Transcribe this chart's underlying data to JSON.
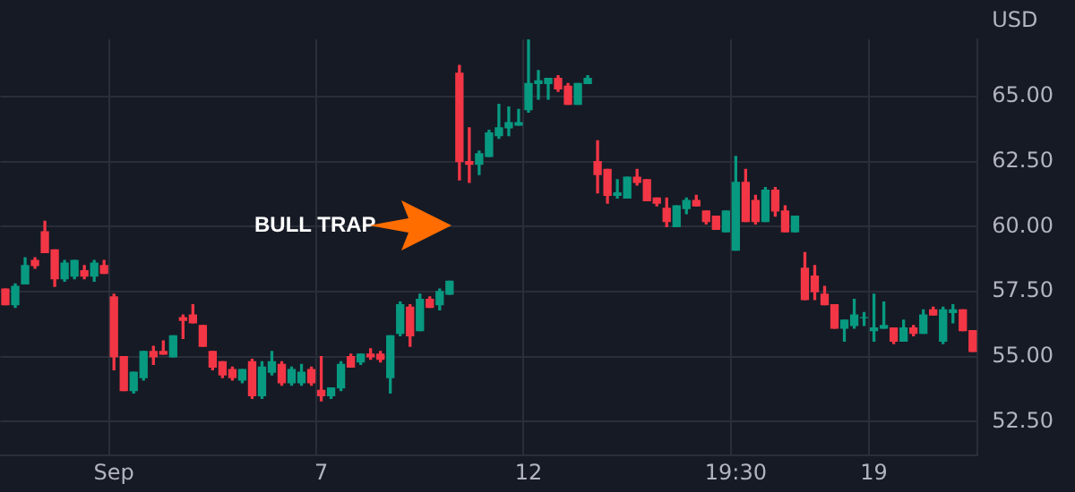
{
  "chart_data": {
    "type": "candlestick",
    "ylabel": "USD",
    "annotations": [
      "BULL TRAP"
    ],
    "grid": true,
    "categories": [
      null,
      null,
      null,
      null,
      null,
      null,
      null,
      null,
      null,
      null,
      null,
      "Sep",
      null,
      null,
      null,
      null,
      null,
      null,
      null,
      null,
      null,
      null,
      null,
      null,
      null,
      null,
      null,
      null,
      null,
      null,
      null,
      null,
      "7",
      null,
      null,
      null,
      null,
      null,
      null,
      null,
      null,
      null,
      null,
      null,
      null,
      null,
      null,
      null,
      null,
      null,
      null,
      null,
      null,
      "12",
      null,
      null,
      null,
      null,
      null,
      null,
      null,
      null,
      null,
      null,
      null,
      null,
      null,
      null,
      null,
      null,
      null,
      null,
      null,
      null,
      "19:30",
      null,
      null,
      null,
      null,
      null,
      null,
      null,
      null,
      null,
      null,
      null,
      null,
      null,
      "19",
      null,
      null,
      null,
      null,
      null,
      null,
      null,
      null,
      null,
      null
    ],
    "ohlc": [
      [
        57.6,
        57.6,
        57.0,
        57.0
      ],
      [
        57.0,
        57.8,
        56.9,
        57.7
      ],
      [
        57.8,
        58.8,
        57.8,
        58.5
      ],
      [
        58.7,
        58.8,
        58.4,
        58.5
      ],
      [
        59.8,
        60.2,
        59.0,
        59.0
      ],
      [
        59.1,
        59.1,
        57.7,
        58.0
      ],
      [
        58.0,
        58.7,
        57.9,
        58.6
      ],
      [
        58.1,
        58.7,
        58.0,
        58.7
      ],
      [
        58.3,
        58.5,
        58.0,
        58.1
      ],
      [
        58.1,
        58.7,
        57.9,
        58.6
      ],
      [
        58.5,
        58.7,
        58.2,
        58.2
      ],
      [
        57.3,
        57.4,
        54.5,
        55.0
      ],
      [
        55.0,
        55.0,
        53.7,
        53.7
      ],
      [
        53.7,
        54.4,
        53.6,
        54.4
      ],
      [
        54.2,
        55.2,
        54.1,
        55.2
      ],
      [
        55.2,
        55.4,
        54.7,
        55.0
      ],
      [
        55.2,
        55.6,
        55.1,
        55.1
      ],
      [
        55.0,
        55.8,
        55.0,
        55.8
      ],
      [
        56.5,
        56.6,
        55.7,
        56.4
      ],
      [
        56.6,
        57.0,
        56.3,
        56.3
      ],
      [
        56.2,
        56.2,
        55.4,
        55.4
      ],
      [
        55.2,
        55.2,
        54.5,
        54.6
      ],
      [
        54.8,
        54.8,
        54.2,
        54.3
      ],
      [
        54.5,
        54.6,
        54.1,
        54.2
      ],
      [
        54.1,
        54.5,
        54.0,
        54.5
      ],
      [
        54.8,
        54.9,
        53.4,
        53.5
      ],
      [
        53.5,
        54.8,
        53.4,
        54.6
      ],
      [
        54.4,
        55.2,
        54.3,
        54.8
      ],
      [
        54.7,
        54.8,
        53.9,
        54.0
      ],
      [
        54.0,
        54.6,
        53.9,
        54.5
      ],
      [
        54.0,
        54.7,
        53.9,
        54.4
      ],
      [
        54.5,
        54.6,
        53.9,
        54.0
      ],
      [
        53.7,
        55.0,
        53.3,
        53.5
      ],
      [
        53.5,
        53.8,
        53.4,
        53.8
      ],
      [
        53.8,
        54.8,
        53.7,
        54.7
      ],
      [
        55.0,
        55.1,
        54.6,
        54.6
      ],
      [
        54.8,
        55.1,
        54.7,
        55.1
      ],
      [
        55.1,
        55.3,
        54.9,
        55.0
      ],
      [
        55.1,
        55.2,
        54.8,
        54.9
      ],
      [
        54.2,
        55.8,
        53.6,
        55.8
      ],
      [
        55.9,
        57.1,
        55.8,
        57.0
      ],
      [
        56.9,
        57.0,
        55.4,
        55.8
      ],
      [
        56.0,
        57.4,
        56.0,
        57.2
      ],
      [
        57.2,
        57.3,
        56.9,
        56.9
      ],
      [
        57.0,
        57.6,
        56.8,
        57.5
      ],
      [
        57.4,
        57.9,
        57.4,
        57.9
      ],
      [
        65.9,
        66.2,
        61.8,
        62.5
      ],
      [
        62.5,
        63.8,
        61.7,
        62.4
      ],
      [
        62.4,
        62.9,
        62.0,
        62.8
      ],
      [
        62.7,
        63.7,
        62.7,
        63.6
      ],
      [
        63.5,
        64.7,
        63.4,
        63.8
      ],
      [
        63.8,
        64.6,
        63.5,
        64.0
      ],
      [
        63.9,
        64.5,
        63.9,
        64.0
      ],
      [
        64.5,
        67.3,
        64.4,
        65.5
      ],
      [
        65.5,
        66.0,
        64.9,
        65.6
      ],
      [
        65.5,
        65.7,
        64.9,
        65.7
      ],
      [
        65.7,
        65.8,
        65.2,
        65.3
      ],
      [
        65.4,
        65.5,
        64.7,
        64.7
      ],
      [
        64.7,
        65.5,
        64.7,
        65.5
      ],
      [
        65.5,
        65.8,
        65.5,
        65.7
      ],
      [
        62.5,
        63.3,
        61.3,
        62.0
      ],
      [
        62.2,
        62.2,
        60.9,
        61.2
      ],
      [
        61.2,
        61.8,
        61.1,
        61.3
      ],
      [
        61.1,
        61.9,
        61.1,
        61.9
      ],
      [
        61.9,
        62.2,
        61.6,
        61.7
      ],
      [
        61.8,
        61.8,
        61.0,
        61.0
      ],
      [
        61.1,
        61.1,
        60.8,
        60.9
      ],
      [
        60.7,
        61.1,
        60.0,
        60.2
      ],
      [
        60.0,
        60.8,
        60.0,
        60.8
      ],
      [
        60.7,
        61.1,
        60.5,
        61.0
      ],
      [
        61.0,
        61.2,
        60.8,
        60.8
      ],
      [
        60.6,
        60.6,
        60.1,
        60.2
      ],
      [
        60.4,
        60.4,
        59.9,
        59.9
      ],
      [
        59.8,
        60.6,
        59.8,
        60.6
      ],
      [
        59.1,
        62.7,
        59.1,
        61.7
      ],
      [
        61.7,
        62.2,
        60.2,
        60.2
      ],
      [
        61.0,
        61.2,
        60.1,
        60.2
      ],
      [
        60.2,
        61.5,
        60.2,
        61.4
      ],
      [
        61.4,
        61.5,
        60.4,
        60.6
      ],
      [
        60.6,
        60.8,
        59.8,
        59.8
      ],
      [
        59.8,
        60.4,
        59.8,
        60.4
      ],
      [
        58.4,
        59.0,
        57.2,
        57.2
      ],
      [
        58.1,
        58.5,
        57.2,
        57.5
      ],
      [
        57.4,
        57.7,
        57.0,
        57.0
      ],
      [
        57.0,
        57.0,
        56.1,
        56.1
      ],
      [
        56.1,
        56.4,
        55.6,
        56.4
      ],
      [
        56.2,
        57.2,
        56.1,
        56.6
      ],
      [
        56.5,
        56.7,
        56.2,
        56.5
      ],
      [
        56.0,
        57.4,
        55.6,
        56.1
      ],
      [
        56.1,
        57.1,
        56.1,
        56.2
      ],
      [
        56.1,
        56.1,
        55.5,
        55.6
      ],
      [
        55.6,
        56.4,
        55.6,
        56.1
      ],
      [
        56.1,
        56.2,
        55.8,
        55.9
      ],
      [
        55.9,
        56.8,
        55.9,
        56.6
      ],
      [
        56.8,
        56.9,
        56.6,
        56.6
      ],
      [
        55.6,
        56.9,
        55.5,
        56.8
      ],
      [
        56.7,
        57.0,
        56.3,
        56.8
      ],
      [
        56.8,
        56.8,
        56.0,
        56.0
      ],
      [
        56.0,
        56.0,
        55.2,
        55.2
      ]
    ],
    "ylim": [
      51.2,
      67.2
    ],
    "yticks": [
      {
        "value": 52.5,
        "label": "52.50"
      },
      {
        "value": 55,
        "label": "55.00"
      },
      {
        "value": 57.5,
        "label": "57.50"
      },
      {
        "value": 60,
        "label": "60.00"
      },
      {
        "value": 62.5,
        "label": "62.50"
      },
      {
        "value": 65,
        "label": "65.00"
      }
    ]
  }
}
